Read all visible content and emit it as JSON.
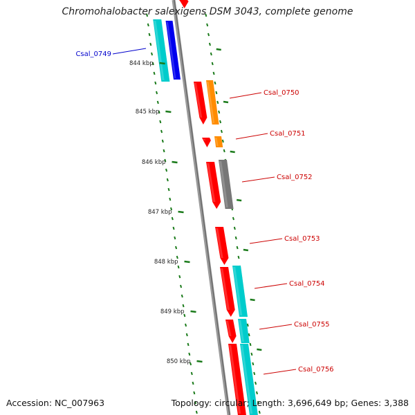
{
  "title": "Chromohalobacter salexigens DSM 3043, complete genome",
  "footer": {
    "accession": "Accession: NC_007963",
    "summary": "Topology: circular; Length: 3,696,649 bp; Genes: 3,388"
  },
  "colors": {
    "backbone": "#808080",
    "tick": "#1a7a1a",
    "cds": "#ff0000",
    "fwd_label": "#cc0000",
    "rev_label": "#0000cc",
    "cyan": "#00cccc",
    "blue": "#0000ee",
    "orange": "#ff8c00",
    "gray": "#777777"
  },
  "scale": {
    "ticks": [
      {
        "label": "844 kbp"
      },
      {
        "label": "845 kbp"
      },
      {
        "label": "846 kbp"
      },
      {
        "label": "847 kbp"
      },
      {
        "label": "848 kbp"
      },
      {
        "label": "849 kbp"
      },
      {
        "label": "850 kbp"
      }
    ]
  },
  "genes": [
    {
      "label": "Csal_0749",
      "strand": "reverse"
    },
    {
      "label": "Csal_0750",
      "strand": "forward"
    },
    {
      "label": "Csal_0751",
      "strand": "forward"
    },
    {
      "label": "Csal_0752",
      "strand": "forward"
    },
    {
      "label": "Csal_0753",
      "strand": "forward"
    },
    {
      "label": "Csal_0754",
      "strand": "forward"
    },
    {
      "label": "Csal_0755",
      "strand": "forward"
    },
    {
      "label": "Csal_0756",
      "strand": "forward"
    }
  ]
}
